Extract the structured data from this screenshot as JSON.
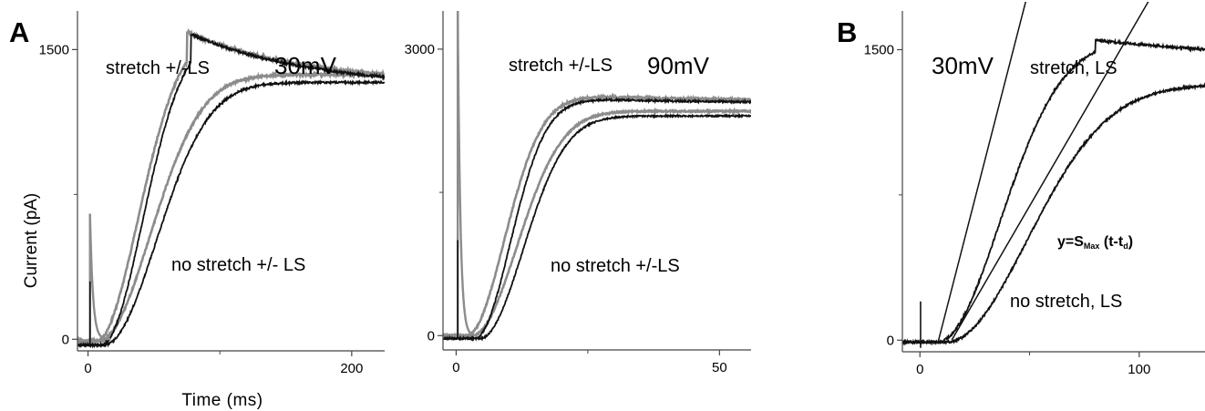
{
  "figure": {
    "panel_a_letter": "A",
    "panel_b_letter": "B",
    "shared_ylabel": "Current (pA)",
    "shared_xlabel": "Time (ms)"
  },
  "colors": {
    "black_trace": "#111111",
    "gray_trace": "#8c8c8c",
    "axis": "#444444"
  },
  "chart_data": [
    {
      "type": "line",
      "panel": "A-left",
      "voltage_label": "30mV",
      "annotations": [
        "stretch +/-LS",
        "no stretch +/- LS"
      ],
      "xlim": [
        -8,
        225
      ],
      "ylim": [
        -60,
        1700
      ],
      "xticks": [
        0,
        200
      ],
      "yticks": [
        0,
        1500
      ],
      "xticks_minor": [
        100
      ],
      "yticks_minor": [
        750
      ],
      "spike": {
        "t0": 1.5,
        "gray_peak": 650,
        "black_peak": 300,
        "tau": 2.2
      },
      "series": [
        {
          "color": "gray",
          "family": "fast",
          "baseline": -10,
          "dip": 70,
          "td": 6,
          "smax": 1600,
          "rise": 45,
          "plateau": 1320,
          "peak_t": 75,
          "jitter": 12
        },
        {
          "color": "black",
          "family": "fast",
          "baseline": -30,
          "dip": 0,
          "td": 10,
          "smax": 1610,
          "rise": 44,
          "plateau": 1300,
          "peak_t": 78,
          "jitter": 12
        },
        {
          "color": "gray",
          "family": "slow",
          "baseline": -10,
          "dip": 70,
          "td": 8,
          "smax": 1380,
          "rise": 55,
          "plateau": 1320,
          "peak_t": 260,
          "jitter": 10
        },
        {
          "color": "black",
          "family": "slow",
          "baseline": -30,
          "dip": 0,
          "td": 12,
          "smax": 1360,
          "rise": 56,
          "plateau": 1300,
          "peak_t": 260,
          "jitter": 10
        }
      ]
    },
    {
      "type": "line",
      "panel": "A-middle",
      "voltage_label": "90mV",
      "annotations": [
        "stretch +/-LS",
        "no stretch +/-LS"
      ],
      "xlim": [
        -2.5,
        56
      ],
      "ylim": [
        -150,
        3400
      ],
      "xticks": [
        0,
        50
      ],
      "yticks": [
        0,
        3000
      ],
      "xticks_minor": [
        25
      ],
      "yticks_minor": [
        1500
      ],
      "spike": {
        "t0": 0.3,
        "gray_peak": 3400,
        "black_peak": 1000,
        "tau": 0.5
      },
      "series": [
        {
          "color": "gray",
          "family": "fast",
          "baseline": 0,
          "dip": 300,
          "td": 2,
          "smax": 2500,
          "rise": 10,
          "plateau": 2450,
          "peak_t": 28,
          "jitter": 18
        },
        {
          "color": "black",
          "family": "fast",
          "baseline": -30,
          "dip": 0,
          "td": 3.5,
          "smax": 2500,
          "rise": 9.5,
          "plateau": 2430,
          "peak_t": 28,
          "jitter": 18
        },
        {
          "color": "gray",
          "family": "slow",
          "baseline": 0,
          "dip": 300,
          "td": 3,
          "smax": 2350,
          "rise": 12,
          "plateau": 2350,
          "peak_t": 90,
          "jitter": 15
        },
        {
          "color": "black",
          "family": "slow",
          "baseline": -30,
          "dip": 0,
          "td": 4.5,
          "smax": 2330,
          "rise": 11.5,
          "plateau": 2330,
          "peak_t": 90,
          "jitter": 15
        }
      ]
    },
    {
      "type": "line",
      "panel": "B",
      "voltage_label": "30mV",
      "annotations": [
        "stretch, LS",
        "no stretch, LS"
      ],
      "formula": {
        "prefix": "y=S",
        "sub1": "Max",
        "mid": " (t-t",
        "sub2": "d",
        "suffix": ")"
      },
      "xlim": [
        -8,
        130
      ],
      "ylim": [
        -60,
        1700
      ],
      "xticks": [
        0,
        100
      ],
      "yticks": [
        0,
        1500
      ],
      "xticks_minor": [
        50
      ],
      "yticks_minor": [
        750
      ],
      "spike": {
        "t0": 0.3,
        "gray_peak": 0,
        "black_peak": 200,
        "tau": 1.5
      },
      "series": [
        {
          "color": "black",
          "family": "fast",
          "baseline": -10,
          "dip": 0,
          "td": 8,
          "smax": 1560,
          "rise": 40,
          "plateau": 1430,
          "peak_t": 80,
          "jitter": 12
        },
        {
          "color": "black",
          "family": "slow",
          "baseline": -10,
          "dip": 0,
          "td": 12,
          "smax": 1330,
          "rise": 52,
          "plateau": 1300,
          "peak_t": 260,
          "jitter": 10
        }
      ],
      "fit_lines": [
        {
          "t_start": 8.5,
          "t_end": 52,
          "slope": 44
        },
        {
          "t_start": 14.5,
          "t_end": 135,
          "slope": 19.5
        }
      ]
    }
  ]
}
